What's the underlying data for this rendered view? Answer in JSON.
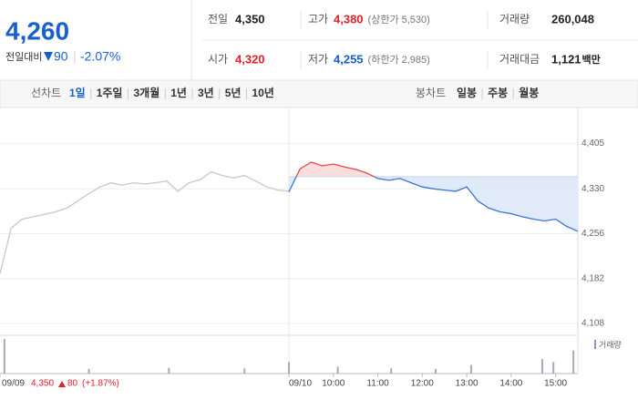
{
  "header": {
    "price": "4,260",
    "change_label": "전일대비",
    "change": "90",
    "change_rate": "-2.07%",
    "rows": [
      [
        {
          "label": "전일",
          "value": "4,350"
        },
        {
          "label": "고가",
          "value": "4,380",
          "note": "(상한가 5,530)"
        },
        {
          "label": "거래량",
          "value": "260,048"
        }
      ],
      [
        {
          "label": "시가",
          "value": "4,320"
        },
        {
          "label": "저가",
          "value": "4,255",
          "note": "(하한가 2,985)"
        },
        {
          "label": "거래대금",
          "value": "1,121",
          "unit": "백만"
        }
      ]
    ]
  },
  "nav": {
    "line_label": "선차트",
    "line_periods": [
      "1일",
      "1주일",
      "3개월",
      "1년",
      "3년",
      "5년",
      "10년"
    ],
    "candle_label": "봉차트",
    "candle_periods": [
      "일봉",
      "주봉",
      "월봉"
    ]
  },
  "chart_data": {
    "type": "line",
    "xlim": [
      0,
      13
    ],
    "xticks": [
      {
        "value": 0,
        "label": "09/09"
      },
      {
        "value": 6.5,
        "label": "09/10"
      },
      {
        "value": 7.5,
        "label": "10:00"
      },
      {
        "value": 8.5,
        "label": "11:00"
      },
      {
        "value": 9.5,
        "label": "12:00"
      },
      {
        "value": 10.5,
        "label": "13:00"
      },
      {
        "value": 11.5,
        "label": "14:00"
      },
      {
        "value": 12.5,
        "label": "15:00"
      }
    ],
    "ylim": [
      4093,
      4416
    ],
    "yticks": [
      {
        "value": 4108,
        "label": "4,108"
      },
      {
        "value": 4182,
        "label": "4,182"
      },
      {
        "value": 4256,
        "label": "4,256"
      },
      {
        "value": 4330,
        "label": "4,330"
      },
      {
        "value": 4405,
        "label": "4,405"
      }
    ],
    "grid": true,
    "reference": 4350,
    "series": [
      {
        "color": "#c8c8c8",
        "x": [
          0,
          0.25,
          0.5,
          0.75,
          1,
          1.25,
          1.5,
          1.75,
          2,
          2.25,
          2.5,
          2.75,
          3,
          3.25,
          3.5,
          3.75,
          4,
          4.25,
          4.5,
          4.75,
          5,
          5.25,
          5.5,
          5.75,
          6,
          6.25,
          6.5
        ],
        "values": [
          4190,
          4265,
          4280,
          4284,
          4288,
          4292,
          4298,
          4310,
          4322,
          4333,
          4340,
          4336,
          4340,
          4338,
          4340,
          4343,
          4326,
          4340,
          4345,
          4358,
          4352,
          4348,
          4352,
          4343,
          4333,
          4328,
          4326
        ]
      },
      {
        "color": "#3b74d6",
        "up_color": "#e8474f",
        "fill_color": "#dce8f8",
        "up_fill_color": "#fbdada",
        "x": [
          6.5,
          6.75,
          7,
          7.25,
          7.5,
          7.75,
          8,
          8.25,
          8.5,
          8.75,
          9,
          9.25,
          9.5,
          9.75,
          10,
          10.25,
          10.5,
          10.75,
          11,
          11.25,
          11.5,
          11.75,
          12,
          12.25,
          12.5,
          12.75,
          13
        ],
        "values": [
          4325,
          4363,
          4374,
          4368,
          4371,
          4366,
          4362,
          4356,
          4347,
          4344,
          4347,
          4340,
          4333,
          4330,
          4328,
          4326,
          4333,
          4310,
          4298,
          4292,
          4289,
          4284,
          4280,
          4277,
          4280,
          4268,
          4260
        ]
      }
    ],
    "volume": {
      "name": "거래량",
      "color": "#a9a9bb",
      "legend_color": "#a08cc8",
      "ylim": [
        0,
        60000
      ],
      "x": [
        0.1,
        2,
        3.8,
        5.5,
        6.5,
        7.6,
        8.8,
        9.8,
        10.6,
        12.2,
        12.45,
        12.9
      ],
      "values": [
        60000,
        8000,
        10000,
        9000,
        20000,
        12000,
        9000,
        8000,
        15000,
        25000,
        20000,
        40000
      ]
    },
    "prev_info": {
      "close": "4,350",
      "change": "80",
      "rate": "(+1.87%)"
    }
  }
}
